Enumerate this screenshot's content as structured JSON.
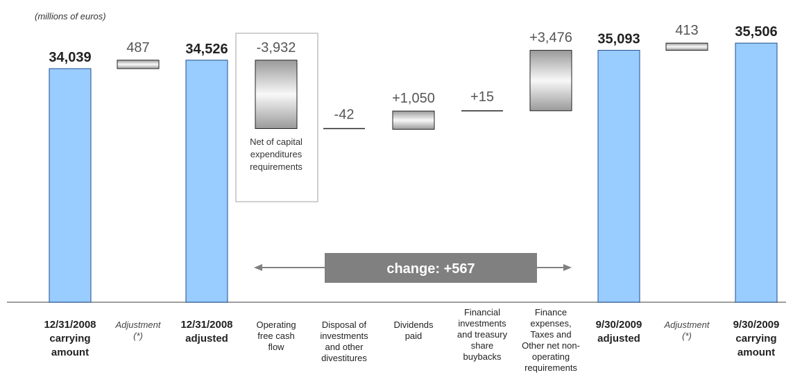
{
  "chart_data": {
    "type": "bar",
    "subtype": "waterfall",
    "unit_label": "(millions of euros)",
    "ylim": [
      0,
      36000
    ],
    "grid": false,
    "legend": "none",
    "colors": {
      "total_bar": "#99ccff",
      "total_stroke": "#1f4e8c",
      "step_light": "#f8f8f8",
      "step_dark": "#9a9a9a",
      "arrow": "#808080",
      "change_box": "#808080"
    },
    "steps": [
      {
        "label": [
          "12/31/2008",
          "carrying",
          "amount"
        ],
        "label_style": "bold",
        "kind": "total",
        "value": 34039,
        "value_label": "34,039"
      },
      {
        "label": [
          "Adjustment",
          "(*)"
        ],
        "label_style": "italic",
        "kind": "delta",
        "value": 487,
        "value_label": "487"
      },
      {
        "label": [
          "12/31/2008",
          "adjusted"
        ],
        "label_style": "bold",
        "kind": "total",
        "value": 34526,
        "value_label": "34,526"
      },
      {
        "label": [
          "Operating",
          "free cash",
          "flow"
        ],
        "label_style": "normal",
        "kind": "delta",
        "value": -3932,
        "value_label": "-3,932",
        "note": [
          "Net of capital",
          "expenditures",
          "requirements"
        ]
      },
      {
        "label": [
          "Disposal of",
          "investments",
          "and other",
          "divestitures"
        ],
        "label_style": "normal",
        "kind": "delta",
        "value": -42,
        "value_label": "-42"
      },
      {
        "label": [
          "Dividends",
          "paid"
        ],
        "label_style": "normal",
        "kind": "delta",
        "value": 1050,
        "value_label": "+1,050"
      },
      {
        "label": [
          "Financial",
          "investments",
          "and treasury",
          "share",
          "buybacks"
        ],
        "label_style": "normal",
        "kind": "delta",
        "value": 15,
        "value_label": "+15"
      },
      {
        "label": [
          "Finance",
          "expenses,",
          "Taxes and",
          "Other net non-",
          "operating",
          "requirements"
        ],
        "label_style": "normal",
        "kind": "delta",
        "value": 3476,
        "value_label": "+3,476"
      },
      {
        "label": [
          "9/30/2009",
          "adjusted"
        ],
        "label_style": "bold",
        "kind": "total",
        "value": 35093,
        "value_label": "35,093"
      },
      {
        "label": [
          "Adjustment",
          "(*)"
        ],
        "label_style": "italic",
        "kind": "delta",
        "value": 413,
        "value_label": "413"
      },
      {
        "label": [
          "9/30/2009",
          "carrying",
          "amount"
        ],
        "label_style": "bold",
        "kind": "total",
        "value": 35506,
        "value_label": "35,506"
      }
    ],
    "change_annotation": "change: +567"
  }
}
